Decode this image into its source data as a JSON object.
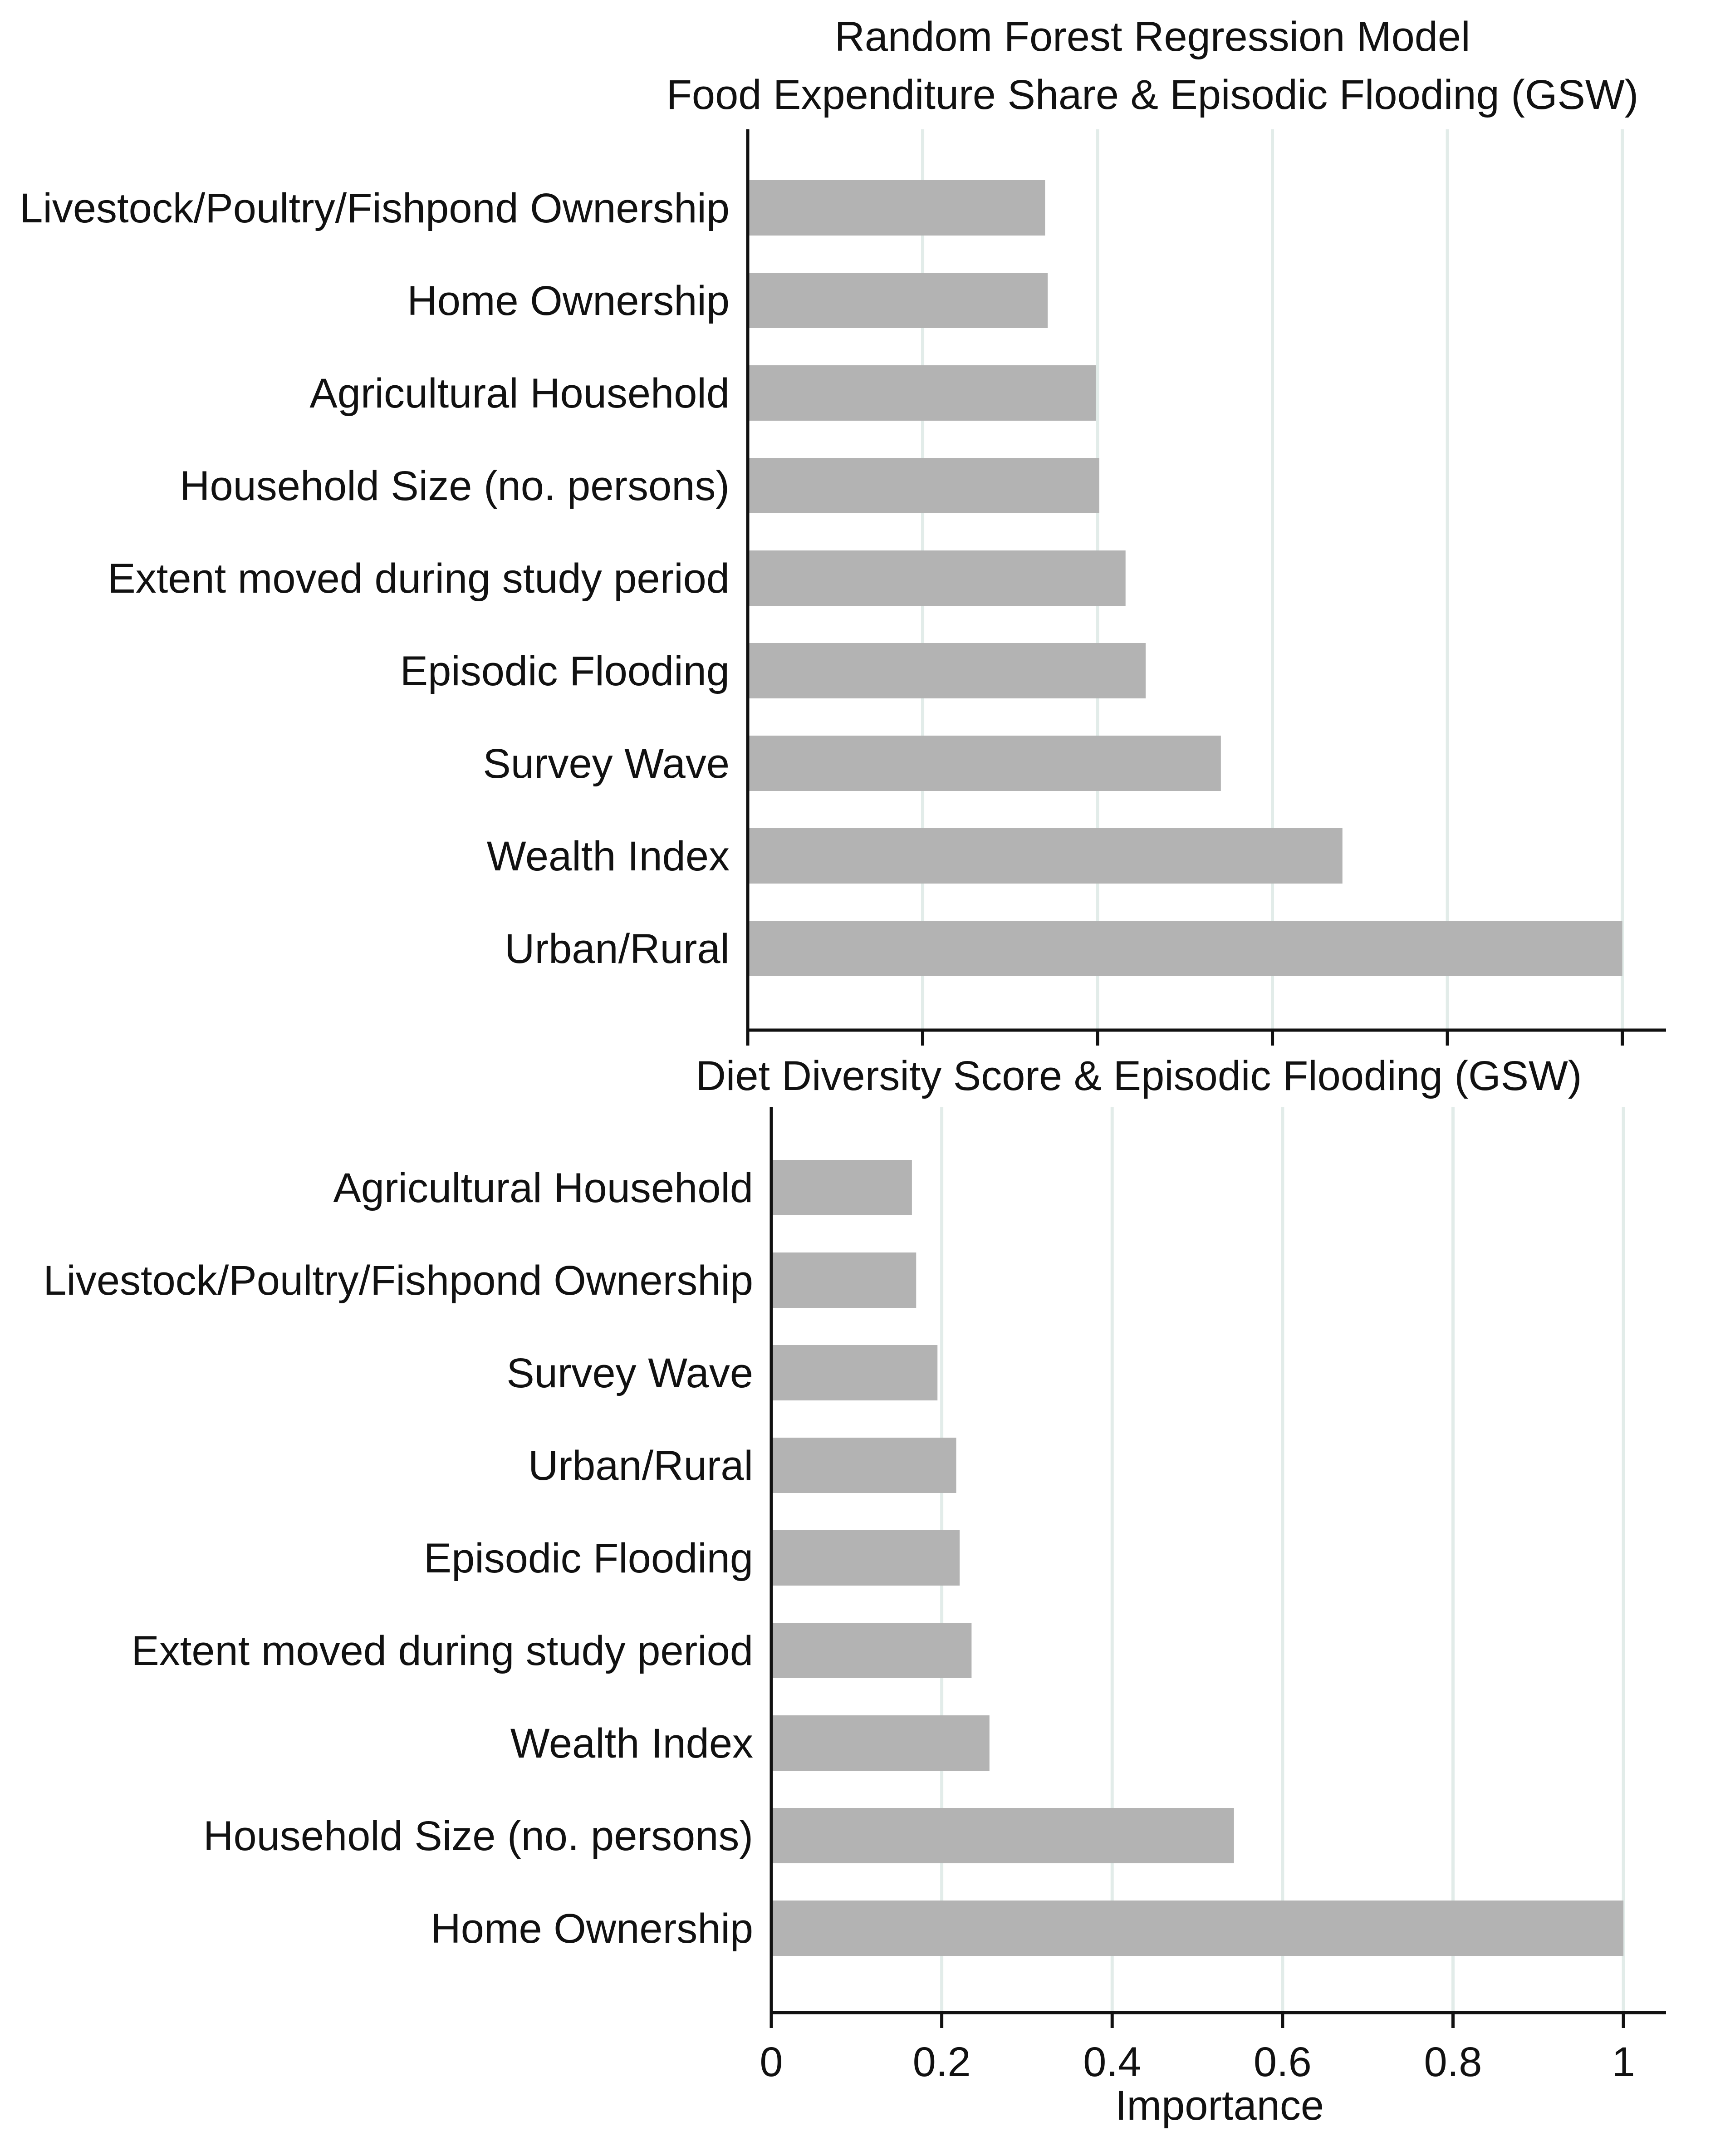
{
  "figure": {
    "title_line1": "Random Forest Regression Model",
    "xlabel": "Importance"
  },
  "colors": {
    "bar": "#b3b3b3",
    "grid": "#e2ece9",
    "axis": "#111111",
    "text": "#111111"
  },
  "chart_data": [
    {
      "type": "bar",
      "orientation": "horizontal",
      "title": "Food Expenditure Share & Episodic Flooding (GSW)",
      "categories": [
        "Livestock/Poultry/Fishpond Ownership",
        "Home Ownership",
        "Agricultural Household",
        "Household Size (no. persons)",
        "Extent moved during study period",
        "Episodic Flooding",
        "Survey Wave",
        "Wealth Index",
        "Urban/Rural"
      ],
      "values": [
        0.34,
        0.343,
        0.398,
        0.402,
        0.432,
        0.455,
        0.541,
        0.68,
        1.0
      ],
      "xlim": [
        0,
        1.05
      ],
      "xticks": [
        0,
        0.2,
        0.4,
        0.6,
        0.8,
        1
      ],
      "show_tick_labels": false,
      "grid": true
    },
    {
      "type": "bar",
      "orientation": "horizontal",
      "title": "Diet Diversity Score & Episodic Flooding (GSW)",
      "categories": [
        "Agricultural Household",
        "Livestock/Poultry/Fishpond Ownership",
        "Survey Wave",
        "Urban/Rural",
        "Episodic Flooding",
        "Extent moved during study period",
        "Wealth Index",
        "Household Size (no. persons)",
        "Home Ownership"
      ],
      "values": [
        0.165,
        0.17,
        0.195,
        0.217,
        0.221,
        0.235,
        0.256,
        0.543,
        1.0
      ],
      "xlim": [
        0,
        1.05
      ],
      "xticks": [
        0,
        0.2,
        0.4,
        0.6,
        0.8,
        1
      ],
      "tick_labels": [
        "0",
        "0.2",
        "0.4",
        "0.6",
        "0.8",
        "1"
      ],
      "show_tick_labels": true,
      "grid": true
    }
  ]
}
